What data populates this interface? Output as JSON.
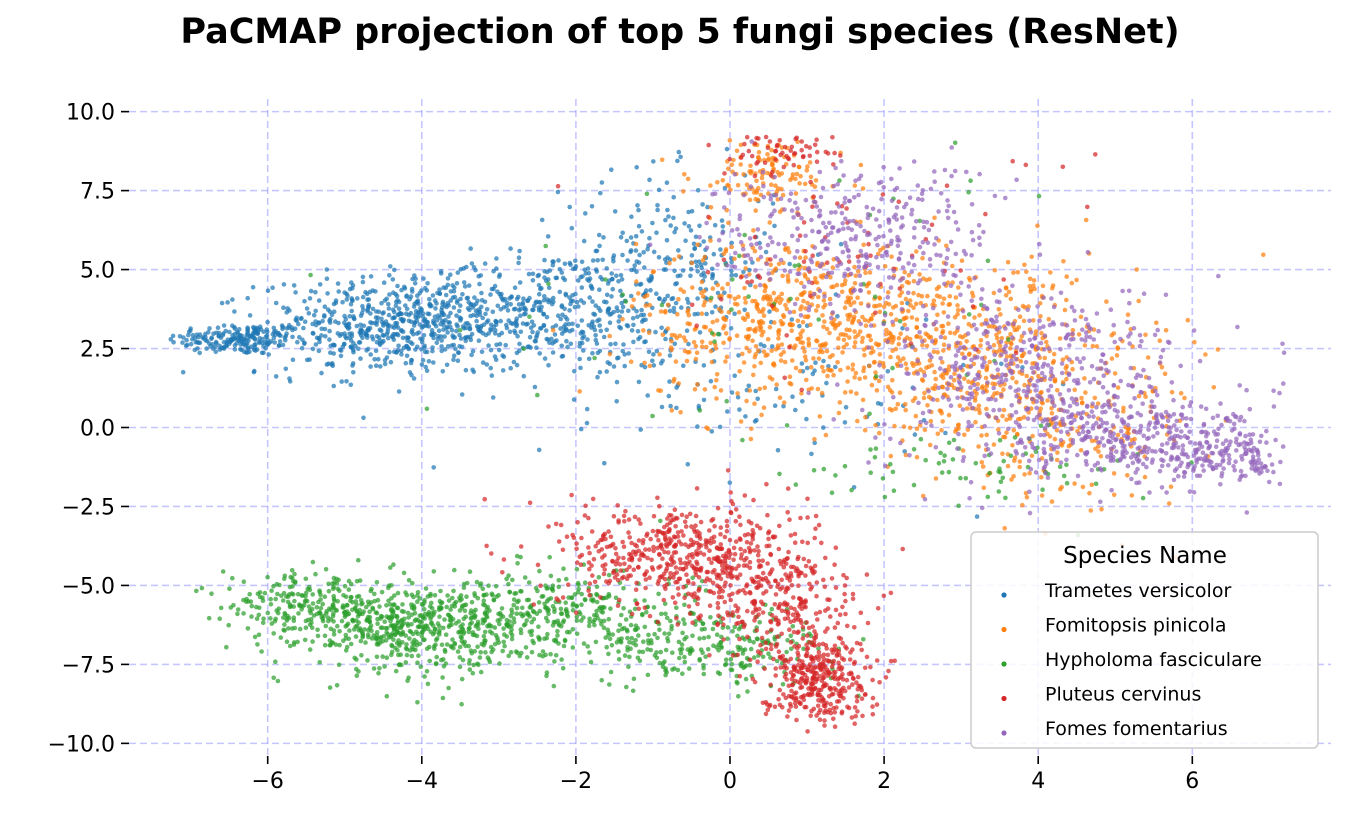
{
  "chart_data": {
    "type": "scatter",
    "title": "PaCMAP projection of top 5 fungi species (ResNet)",
    "xlabel": "",
    "ylabel": "",
    "xlim": [
      -7.8,
      7.8
    ],
    "ylim": [
      -10.4,
      10.4
    ],
    "grid": true,
    "grid_style": "dashed",
    "grid_color": "#8080ff",
    "x_ticks": [
      -6,
      -4,
      -2,
      0,
      2,
      4,
      6
    ],
    "x_tick_labels": [
      "−6",
      "−4",
      "−2",
      "0",
      "2",
      "4",
      "6"
    ],
    "y_ticks": [
      10,
      7.5,
      5,
      2.5,
      0,
      -2.5,
      -5,
      -7.5,
      -10
    ],
    "y_tick_labels": [
      "10.0",
      "7.5",
      "5.0",
      "2.5",
      "0.0",
      "−2.5",
      "−5.0",
      "−7.5",
      "−10.0"
    ],
    "legend": {
      "title": "Species Name",
      "position": "lower-right"
    },
    "series": [
      {
        "name": "Trametes versicolor",
        "color": "#1f77b4",
        "clusters": [
          {
            "center": [
              -6.4,
              2.8
            ],
            "std": [
              0.45,
              0.25
            ],
            "n": 180
          },
          {
            "center": [
              -4.3,
              3.2
            ],
            "std": [
              0.9,
              0.75
            ],
            "n": 650
          },
          {
            "center": [
              -2.3,
              3.8
            ],
            "std": [
              0.9,
              0.9
            ],
            "n": 350
          },
          {
            "center": [
              -0.8,
              5.2
            ],
            "std": [
              0.7,
              1.4
            ],
            "n": 240
          },
          {
            "center": [
              0.3,
              1.5
            ],
            "std": [
              1.4,
              1.5
            ],
            "n": 120
          }
        ]
      },
      {
        "name": "Fomitopsis pinicola",
        "color": "#ff7f0e",
        "clusters": [
          {
            "center": [
              1.0,
              3.4
            ],
            "std": [
              1.1,
              1.3
            ],
            "n": 650
          },
          {
            "center": [
              3.3,
              2.2
            ],
            "std": [
              1.0,
              1.5
            ],
            "n": 420
          },
          {
            "center": [
              0.5,
              8.0
            ],
            "std": [
              0.5,
              0.6
            ],
            "n": 120
          },
          {
            "center": [
              4.3,
              0.0
            ],
            "std": [
              0.9,
              1.2
            ],
            "n": 200
          }
        ]
      },
      {
        "name": "Hypholoma fasciculare",
        "color": "#2ca02c",
        "clusters": [
          {
            "center": [
              -5.6,
              -5.6
            ],
            "std": [
              0.5,
              0.45
            ],
            "n": 170
          },
          {
            "center": [
              -4.2,
              -6.3
            ],
            "std": [
              0.7,
              0.7
            ],
            "n": 550
          },
          {
            "center": [
              -2.2,
              -6.0
            ],
            "std": [
              0.9,
              0.7
            ],
            "n": 380
          },
          {
            "center": [
              -0.2,
              -7.0
            ],
            "std": [
              0.8,
              0.6
            ],
            "n": 220
          },
          {
            "center": [
              3.2,
              -1.2
            ],
            "std": [
              1.2,
              0.5
            ],
            "n": 70
          },
          {
            "center": [
              1.0,
              4.0
            ],
            "std": [
              2.2,
              2.5
            ],
            "n": 60
          }
        ]
      },
      {
        "name": "Pluteus cervinus",
        "color": "#d62728",
        "clusters": [
          {
            "center": [
              -0.6,
              -4.0
            ],
            "std": [
              0.8,
              0.8
            ],
            "n": 520
          },
          {
            "center": [
              0.6,
              -5.5
            ],
            "std": [
              0.6,
              0.9
            ],
            "n": 250
          },
          {
            "center": [
              1.1,
              -7.9
            ],
            "std": [
              0.35,
              0.7
            ],
            "n": 360
          },
          {
            "center": [
              0.7,
              8.8
            ],
            "std": [
              0.35,
              0.3
            ],
            "n": 60
          },
          {
            "center": [
              1.5,
              5.5
            ],
            "std": [
              1.5,
              1.8
            ],
            "n": 70
          }
        ]
      },
      {
        "name": "Fomes fomentarius",
        "color": "#9467bd",
        "clusters": [
          {
            "center": [
              1.6,
              6.0
            ],
            "std": [
              0.9,
              1.2
            ],
            "n": 330
          },
          {
            "center": [
              4.0,
              1.6
            ],
            "std": [
              1.0,
              1.5
            ],
            "n": 520
          },
          {
            "center": [
              5.6,
              -0.5
            ],
            "std": [
              0.9,
              0.6
            ],
            "n": 330
          },
          {
            "center": [
              6.5,
              -1.0
            ],
            "std": [
              0.4,
              0.35
            ],
            "n": 100
          }
        ]
      }
    ]
  }
}
